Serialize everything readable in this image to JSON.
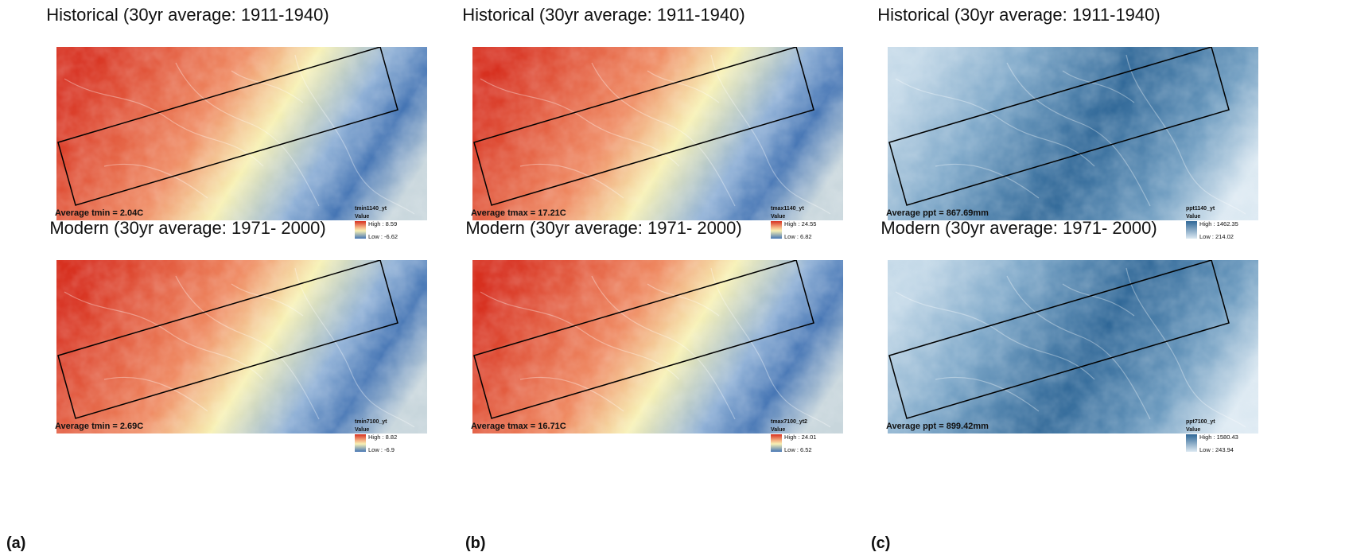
{
  "columns": [
    {
      "label": "(a)",
      "scheme": "temp",
      "panels": [
        {
          "title": "Historical (30yr average:  1911-1940)",
          "average": "Average tmin = 2.04C",
          "legend": {
            "name": "tmin1140_yt",
            "value_label": "Value",
            "high": "High : 8.59",
            "low": "Low : -6.62"
          }
        },
        {
          "title": "Modern (30yr average:  1971- 2000)",
          "average": "Average tmin = 2.69C",
          "legend": {
            "name": "tmin7100_yt",
            "value_label": "Value",
            "high": "High : 8.82",
            "low": "Low : -6.9"
          }
        }
      ]
    },
    {
      "label": "(b)",
      "scheme": "temp",
      "panels": [
        {
          "title": "Historical (30yr average:  1911-1940)",
          "average": "Average tmax = 17.21C",
          "legend": {
            "name": "tmax1140_yt",
            "value_label": "Value",
            "high": "High : 24.55",
            "low": "Low : 6.82"
          }
        },
        {
          "title": "Modern (30yr average:  1971- 2000)",
          "average": "Average tmax = 16.71C",
          "legend": {
            "name": "tmax7100_yt2",
            "value_label": "Value",
            "high": "High : 24.01",
            "low": "Low : 6.52"
          }
        }
      ]
    },
    {
      "label": "(c)",
      "scheme": "precip",
      "panels": [
        {
          "title": "Historical (30yr average:  1911-1940)",
          "average": "Average ppt = 867.69mm",
          "legend": {
            "name": "ppt1140_yt",
            "value_label": "Value",
            "high": "High : 1462.35",
            "low": "Low : 214.02"
          }
        },
        {
          "title": "Modern (30yr average:  1971- 2000)",
          "average": "Average ppt = 899.42mm",
          "legend": {
            "name": "ppt7100_yt",
            "value_label": "Value",
            "high": "High : 1580.43",
            "low": "Low : 243.94"
          }
        }
      ]
    }
  ],
  "colors": {
    "temp_high": "#d7301f",
    "temp_mid": "#f7f1b5",
    "temp_low": "#4575b4",
    "precip_high": "#2f6797",
    "precip_low": "#dce9f2",
    "frame": "#000000"
  }
}
